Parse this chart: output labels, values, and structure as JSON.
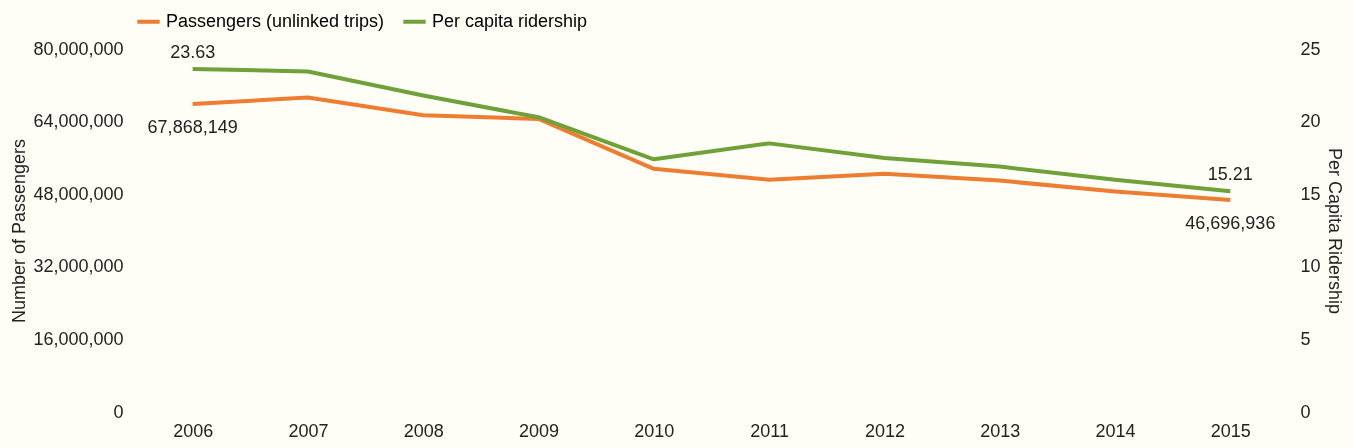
{
  "chart_data": {
    "type": "line",
    "ylabel": "Number of Passengers",
    "y2label": "Per Capita Ridership",
    "categories": [
      "2006",
      "2007",
      "2008",
      "2009",
      "2010",
      "2011",
      "2012",
      "2013",
      "2014",
      "2015"
    ],
    "series": [
      {
        "name": "Passengers (unlinked trips)",
        "color": "#ed7d31",
        "values": [
          67868149,
          69300000,
          65400000,
          64600000,
          53600000,
          51200000,
          52500000,
          51000000,
          48600000,
          46696936
        ],
        "value_labels": [
          "67,868,149",
          null,
          null,
          null,
          null,
          null,
          null,
          null,
          null,
          "46,696,936"
        ]
      },
      {
        "name": "Per capita ridership",
        "color": "#70a038",
        "axis": "y2",
        "values": [
          23.63,
          23.45,
          21.8,
          20.3,
          17.4,
          18.5,
          17.5,
          16.9,
          16.0,
          15.21
        ],
        "value_labels": [
          "23.63",
          null,
          null,
          null,
          null,
          null,
          null,
          null,
          null,
          "15.21"
        ]
      }
    ],
    "ylim": [
      0,
      80000000
    ],
    "yticks": [
      0,
      {
        "value": 16000000,
        "label": "16,000,000"
      },
      {
        "value": 32000000,
        "label": "32,000,000"
      },
      {
        "value": 48000000,
        "label": "48,000,000"
      },
      {
        "value": 64000000,
        "label": "64,000,000"
      },
      {
        "value": 80000000,
        "label": "80,000,000"
      }
    ],
    "y2lim": [
      0,
      25
    ],
    "y2ticks": [
      0,
      5,
      10,
      15,
      20,
      25
    ],
    "grid": false,
    "legend": "top",
    "line_style": "solid",
    "marker": "none"
  }
}
